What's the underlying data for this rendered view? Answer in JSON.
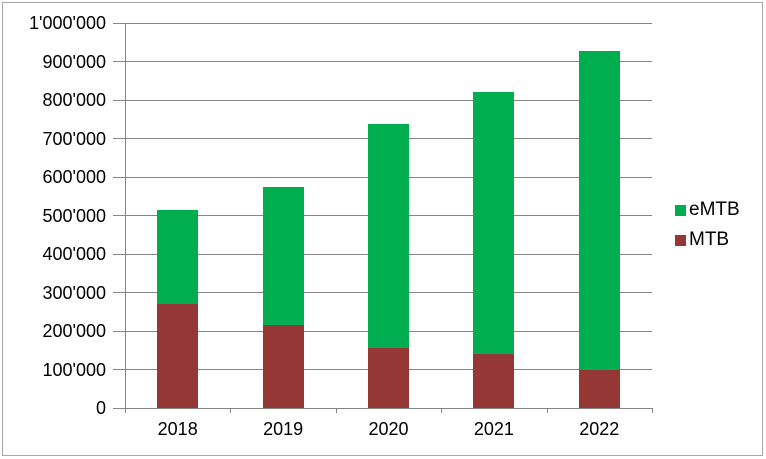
{
  "chart_data": {
    "type": "bar",
    "stacked": true,
    "title": "",
    "xlabel": "",
    "ylabel": "",
    "categories": [
      "2018",
      "2019",
      "2020",
      "2021",
      "2022"
    ],
    "series": [
      {
        "name": "MTB",
        "color": "#953735",
        "values": [
          270000,
          215000,
          155000,
          140000,
          98000
        ]
      },
      {
        "name": "eMTB",
        "color": "#00AE4F",
        "values": [
          245000,
          360000,
          583000,
          682000,
          830000
        ]
      }
    ],
    "totals": [
      515000,
      575000,
      738000,
      822000,
      928000
    ],
    "ylim": [
      0,
      1000000
    ],
    "y_tick_step": 100000,
    "y_tick_labels": [
      "0",
      "100'000",
      "200'000",
      "300'000",
      "400'000",
      "500'000",
      "600'000",
      "700'000",
      "800'000",
      "900'000",
      "1'000'000"
    ],
    "grid": true,
    "legend_position": "right",
    "legend": [
      {
        "label": "eMTB",
        "color": "#00AE4F"
      },
      {
        "label": "MTB",
        "color": "#953735"
      }
    ]
  },
  "colors": {
    "background": "#ffffff",
    "border": "#a6a6a6",
    "gridline": "#868686",
    "text": "#000000",
    "emtb_green": "#00AE4F",
    "mtb_red": "#953735"
  }
}
